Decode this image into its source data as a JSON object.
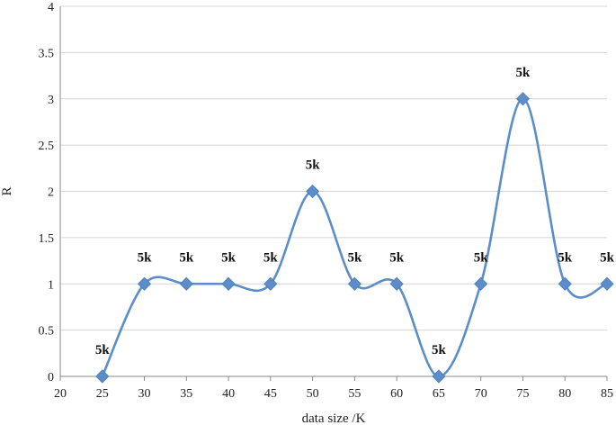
{
  "chart_data": {
    "type": "line",
    "xlabel": "data size /K",
    "ylabel": "R",
    "xlim": [
      20,
      85
    ],
    "ylim": [
      0,
      4
    ],
    "x_ticks": [
      "20",
      "25",
      "30",
      "35",
      "40",
      "45",
      "50",
      "55",
      "60",
      "65",
      "70",
      "75",
      "80",
      "85"
    ],
    "y_ticks": [
      "0",
      "0.5",
      "1",
      "1.5",
      "2",
      "2.5",
      "3",
      "3.5",
      "4"
    ],
    "grid": true,
    "smooth": true,
    "marker": "diamond",
    "color": "#5b8dc9",
    "series": [
      {
        "x": [
          25,
          30,
          35,
          40,
          45,
          50,
          55,
          60,
          65,
          70,
          75,
          80,
          85
        ],
        "values": [
          0,
          1,
          1,
          1,
          1,
          2,
          1,
          1,
          0,
          1,
          3,
          1,
          1
        ],
        "labels": [
          "5k",
          "5k",
          "5k",
          "5k",
          "5k",
          "5k",
          "5k",
          "5k",
          "5k",
          "5k",
          "5k",
          "5k",
          "5k"
        ]
      }
    ]
  }
}
